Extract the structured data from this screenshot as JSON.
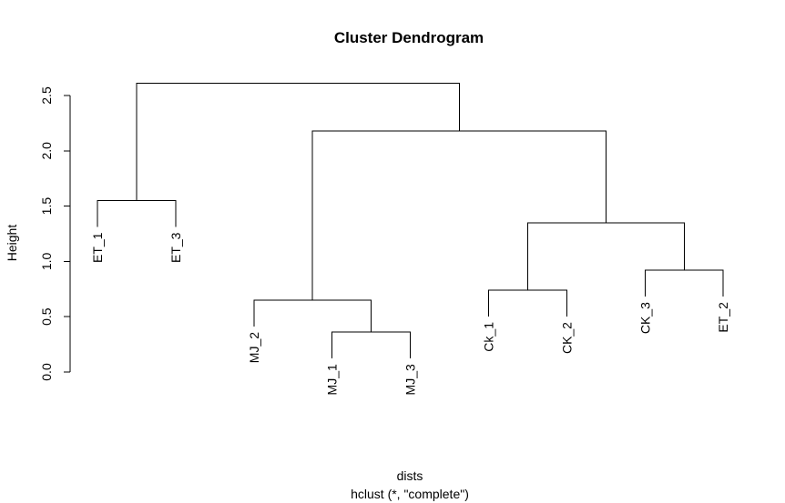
{
  "chart_data": {
    "type": "dendrogram",
    "title": "Cluster Dendrogram",
    "xlabel": "dists",
    "sublabel": "hclust (*, \"complete\")",
    "ylabel": "Height",
    "ylim": [
      0,
      2.6
    ],
    "yticks": [
      0.0,
      0.5,
      1.0,
      1.5,
      2.0,
      2.5
    ],
    "ytick_labels": [
      "0.0",
      "0.5",
      "1.0",
      "1.5",
      "2.0",
      "2.5"
    ],
    "leaf_order": [
      "ET_1",
      "ET_3",
      "MJ_2",
      "MJ_1",
      "MJ_3",
      "Ck_1",
      "CK_2",
      "CK_3",
      "ET_2"
    ],
    "merges": [
      {
        "left": "MJ_1",
        "right": "MJ_3",
        "height": 0.36
      },
      {
        "left": "Ck_1",
        "right": "CK_2",
        "height": 0.74
      },
      {
        "left": "CK_3",
        "right": "ET_2",
        "height": 0.92
      },
      {
        "left": "MJ_2",
        "right": 0,
        "height": 0.65
      },
      {
        "left": 1,
        "right": 2,
        "height": 1.35
      },
      {
        "left": "ET_1",
        "right": "ET_3",
        "height": 1.55
      },
      {
        "left": 3,
        "right": 4,
        "height": 2.18
      },
      {
        "left": 5,
        "right": 6,
        "height": 2.61
      }
    ]
  }
}
